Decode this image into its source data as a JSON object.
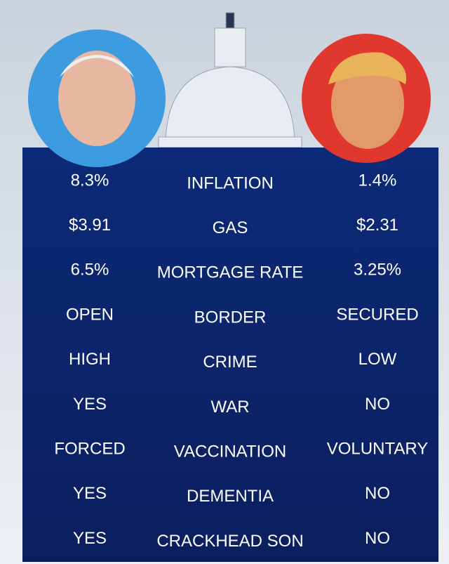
{
  "table": {
    "rows": [
      [
        "8.3%",
        "INFLATION",
        "1.4%"
      ],
      [
        "$3.91",
        "GAS",
        "$2.31"
      ],
      [
        "6.5%",
        "MORTGAGE RATE",
        "3.25%"
      ],
      [
        "OPEN",
        "BORDER",
        "SECURED"
      ],
      [
        "HIGH",
        "CRIME",
        "LOW"
      ],
      [
        "YES",
        "WAR",
        "NO"
      ],
      [
        "FORCED",
        "VACCINATION",
        "VOLUNTARY"
      ],
      [
        "YES",
        "DEMENTIA",
        "NO"
      ],
      [
        "YES",
        "CRACKHEAD SON",
        "NO"
      ]
    ]
  }
}
